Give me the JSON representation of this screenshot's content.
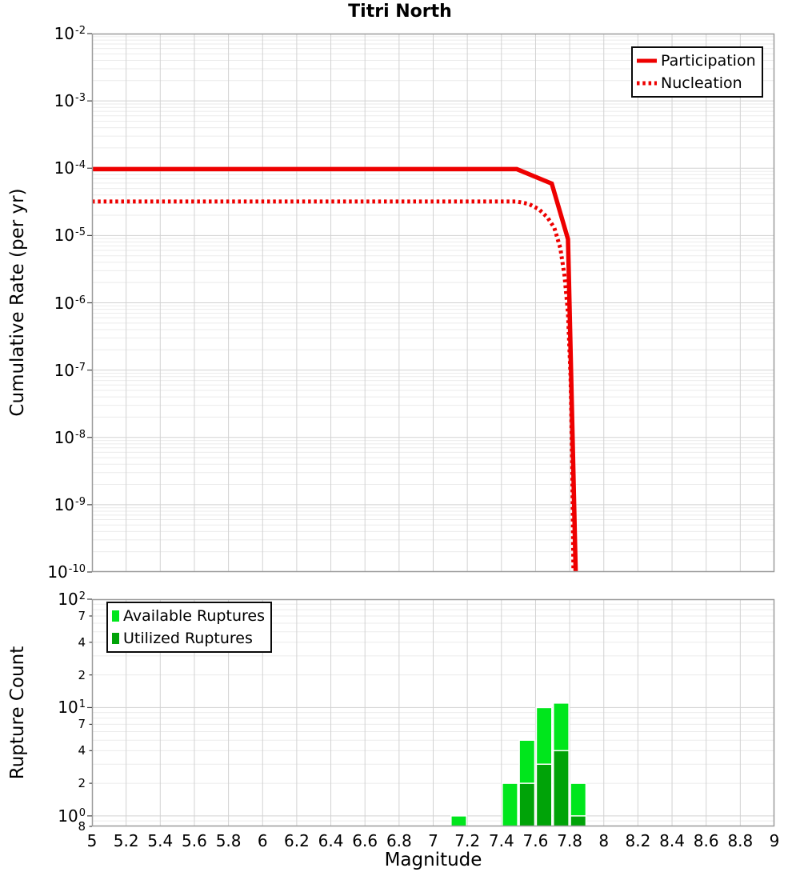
{
  "colors": {
    "background": "#ffffff",
    "grid_major": "#d2d2d2",
    "grid_minor": "#ebebeb",
    "frame": "#9c9c9c",
    "tick_mark": "#444444",
    "text": "#000000",
    "line_red": "#EE0000",
    "available_green": "#00E61C",
    "utilized_green": "#00A308"
  },
  "chart_data": [
    {
      "type": "line",
      "title": "Titri North",
      "ylabel": "Cumulative Rate (per yr)",
      "x_range": [
        5,
        9
      ],
      "y_range": [
        1e-10,
        0.01
      ],
      "y_scale": "log",
      "grid": "major+minor",
      "legend_position": "top-right",
      "series": [
        {
          "name": "Participation",
          "style": "solid",
          "color": "#EE0000",
          "points": [
            [
              5.0,
              9.7e-05
            ],
            [
              7.49,
              9.7e-05
            ],
            [
              7.695,
              5.9e-05
            ],
            [
              7.79,
              8.8e-06
            ],
            [
              7.835,
              1e-10
            ]
          ]
        },
        {
          "name": "Nucleation",
          "style": "dotted",
          "color": "#EE0000",
          "points": [
            [
              5.0,
              3.2e-05
            ],
            [
              7.49,
              3.2e-05
            ],
            [
              7.56,
              2.95e-05
            ],
            [
              7.62,
              2.45e-05
            ],
            [
              7.67,
              1.85e-05
            ],
            [
              7.71,
              1.3e-05
            ],
            [
              7.745,
              6.5e-06
            ],
            [
              7.77,
              2.5e-06
            ],
            [
              7.79,
              7e-07
            ],
            [
              7.805,
              8e-08
            ],
            [
              7.815,
              4e-09
            ],
            [
              7.822,
              1e-10
            ]
          ]
        }
      ],
      "y_ticks": [
        {
          "base": "10",
          "exp": "-2"
        },
        {
          "base": "10",
          "exp": "-3"
        },
        {
          "base": "10",
          "exp": "-4"
        },
        {
          "base": "10",
          "exp": "-5"
        },
        {
          "base": "10",
          "exp": "-6"
        },
        {
          "base": "10",
          "exp": "-7"
        },
        {
          "base": "10",
          "exp": "-8"
        },
        {
          "base": "10",
          "exp": "-9"
        },
        {
          "base": "10",
          "exp": "-10"
        }
      ]
    },
    {
      "type": "bar",
      "ylabel": "Rupture Count",
      "xlabel": "Magnitude",
      "x_range": [
        5,
        9
      ],
      "y_range": [
        0.8,
        100
      ],
      "y_scale": "log",
      "grid": "major+minor",
      "legend_position": "top-left",
      "bar_width": 0.1,
      "categories": [
        7.15,
        7.45,
        7.55,
        7.65,
        7.75,
        7.85
      ],
      "series": [
        {
          "name": "Available Ruptures",
          "color": "#00E61C",
          "values": [
            1,
            2,
            5,
            10,
            11,
            2
          ]
        },
        {
          "name": "Utilized Ruptures",
          "color": "#00A308",
          "values": [
            0,
            0,
            2,
            3,
            4,
            1
          ]
        }
      ],
      "x_ticks": [
        "5",
        "5.2",
        "5.4",
        "5.6",
        "5.8",
        "6",
        "6.2",
        "6.4",
        "6.6",
        "6.8",
        "7",
        "7.2",
        "7.4",
        "7.6",
        "7.8",
        "8",
        "8.2",
        "8.4",
        "8.6",
        "8.8",
        "9"
      ],
      "y_major_ticks": [
        {
          "base": "10",
          "exp": "2"
        },
        {
          "base": "10",
          "exp": "1"
        },
        {
          "base": "10",
          "exp": "0"
        }
      ],
      "y_minor_ticks": [
        {
          "label": "7",
          "value": 70
        },
        {
          "label": "4",
          "value": 40
        },
        {
          "label": "2",
          "value": 20
        },
        {
          "label": "7",
          "value": 7
        },
        {
          "label": "4",
          "value": 4
        },
        {
          "label": "2",
          "value": 2
        },
        {
          "label": "8",
          "value": 0.8
        }
      ]
    }
  ]
}
